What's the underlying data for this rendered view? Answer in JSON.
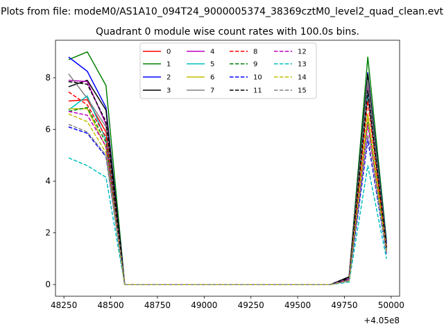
{
  "chart_data": {
    "type": "line",
    "suptitle": "Plots from file: modeM0/AS1A10_094T24_9000005374_38369cztM0_level2_quad_clean.evt",
    "title": "Quadrant 0 module wise count rates with 100.0s bins.",
    "xlabel": "",
    "ylabel": "",
    "x_offset_label": "+4.05e8",
    "x": [
      48275,
      48375,
      48475,
      48575,
      48675,
      48775,
      48875,
      48975,
      49075,
      49175,
      49275,
      49375,
      49475,
      49575,
      49675,
      49775,
      49875,
      49975
    ],
    "xlim": [
      48205,
      50045
    ],
    "ylim": [
      -0.45,
      9.45
    ],
    "xticks": [
      48250,
      48500,
      48750,
      49000,
      49250,
      49500,
      49750,
      50000
    ],
    "xtick_labels": [
      "48250",
      "48500",
      "48750",
      "49000",
      "49250",
      "49500",
      "49750",
      "50000"
    ],
    "yticks": [
      0,
      2,
      4,
      6,
      8
    ],
    "ytick_labels": [
      "0",
      "2",
      "4",
      "6",
      "8"
    ],
    "grid": false,
    "legend": {
      "placement": "top-center",
      "columns": 4
    },
    "series": [
      {
        "name": "0",
        "color": "#ff0000",
        "dash": "solid",
        "values": [
          7.1,
          7.15,
          5.9,
          0,
          0,
          0,
          0,
          0,
          0,
          0,
          0,
          0,
          0,
          0,
          0,
          0.25,
          7.3,
          1.4
        ]
      },
      {
        "name": "1",
        "color": "#008000",
        "dash": "solid",
        "values": [
          8.7,
          9.0,
          7.7,
          0,
          0,
          0,
          0,
          0,
          0,
          0,
          0,
          0,
          0,
          0,
          0,
          0.3,
          8.8,
          1.7
        ]
      },
      {
        "name": "2",
        "color": "#0000ff",
        "dash": "solid",
        "values": [
          8.8,
          8.25,
          6.85,
          0,
          0,
          0,
          0,
          0,
          0,
          0,
          0,
          0,
          0,
          0,
          0,
          0.3,
          8.2,
          1.6
        ]
      },
      {
        "name": "3",
        "color": "#000000",
        "dash": "solid",
        "values": [
          7.65,
          7.9,
          6.75,
          0,
          0,
          0,
          0,
          0,
          0,
          0,
          0,
          0,
          0,
          0,
          0,
          0.3,
          8.15,
          1.5
        ]
      },
      {
        "name": "4",
        "color": "#bf00bf",
        "dash": "solid",
        "values": [
          7.9,
          7.85,
          6.2,
          0,
          0,
          0,
          0,
          0,
          0,
          0,
          0,
          0,
          0,
          0,
          0,
          0.25,
          7.7,
          1.45
        ]
      },
      {
        "name": "5",
        "color": "#00bfbf",
        "dash": "solid",
        "values": [
          6.75,
          7.3,
          5.6,
          0,
          0,
          0,
          0,
          0,
          0,
          0,
          0,
          0,
          0,
          0,
          0,
          0.2,
          7.4,
          1.35
        ]
      },
      {
        "name": "6",
        "color": "#bfbf00",
        "dash": "solid",
        "values": [
          6.8,
          6.8,
          5.3,
          0,
          0,
          0,
          0,
          0,
          0,
          0,
          0,
          0,
          0,
          0,
          0,
          0.2,
          6.6,
          1.3
        ]
      },
      {
        "name": "7",
        "color": "#808080",
        "dash": "solid",
        "values": [
          8.15,
          7.2,
          6.1,
          0,
          0,
          0,
          0,
          0,
          0,
          0,
          0,
          0,
          0,
          0,
          0,
          0.25,
          7.9,
          1.5
        ]
      },
      {
        "name": "8",
        "color": "#ff0000",
        "dash": "dashed",
        "values": [
          7.45,
          6.95,
          5.7,
          0,
          0,
          0,
          0,
          0,
          0,
          0,
          0,
          0,
          0,
          0,
          0,
          0.2,
          7.1,
          1.4
        ]
      },
      {
        "name": "9",
        "color": "#008000",
        "dash": "dashed",
        "values": [
          6.7,
          6.85,
          5.5,
          0,
          0,
          0,
          0,
          0,
          0,
          0,
          0,
          0,
          0,
          0,
          0,
          0.2,
          6.3,
          1.3
        ]
      },
      {
        "name": "10",
        "color": "#0000ff",
        "dash": "dashed",
        "values": [
          6.1,
          5.85,
          4.95,
          0,
          0,
          0,
          0,
          0,
          0,
          0,
          0,
          0,
          0,
          0,
          0,
          0.15,
          5.6,
          1.2
        ]
      },
      {
        "name": "11",
        "color": "#000000",
        "dash": "dashed",
        "values": [
          7.85,
          7.75,
          6.3,
          0,
          0,
          0,
          0,
          0,
          0,
          0,
          0,
          0,
          0,
          0,
          0,
          0.25,
          7.5,
          1.45
        ]
      },
      {
        "name": "12",
        "color": "#bf00bf",
        "dash": "dashed",
        "values": [
          6.7,
          6.55,
          5.35,
          0,
          0,
          0,
          0,
          0,
          0,
          0,
          0,
          0,
          0,
          0,
          0,
          0.2,
          6.2,
          1.3
        ]
      },
      {
        "name": "13",
        "color": "#00bfbf",
        "dash": "dashed",
        "values": [
          4.9,
          4.6,
          4.15,
          0,
          0,
          0,
          0,
          0,
          0,
          0,
          0,
          0,
          0,
          0,
          0,
          0.1,
          4.6,
          1.0
        ]
      },
      {
        "name": "14",
        "color": "#bfbf00",
        "dash": "dashed",
        "values": [
          6.6,
          6.3,
          5.1,
          0,
          0,
          0,
          0,
          0,
          0,
          0,
          0,
          0,
          0,
          0,
          0,
          0.15,
          6.5,
          1.25
        ]
      },
      {
        "name": "15",
        "color": "#808080",
        "dash": "dashed",
        "values": [
          6.2,
          5.9,
          5.0,
          0,
          0,
          0,
          0,
          0,
          0,
          0,
          0,
          0,
          0,
          0,
          0,
          0.15,
          5.8,
          1.2
        ]
      }
    ]
  }
}
